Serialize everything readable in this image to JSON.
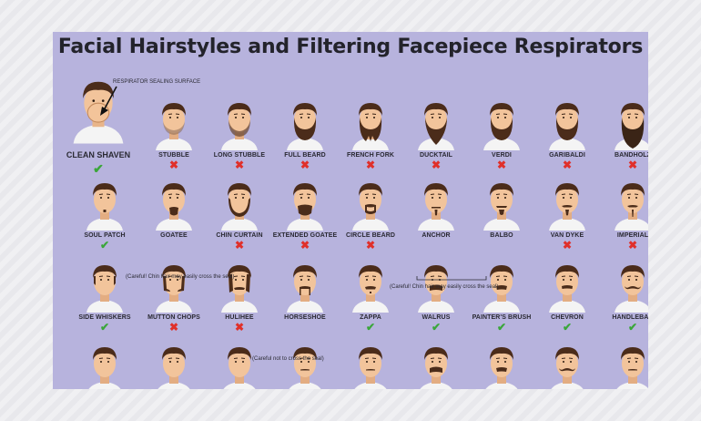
{
  "title": "Facial Hairstyles and Filtering Facepiece Respirators",
  "colors": {
    "poster_bg": "#b7b3dd",
    "skin": "#f2c49b",
    "hair": "#4b2c1a",
    "shirt": "#f4f4f4",
    "respirator": "#f3c49a",
    "allowed": "#3aa63a",
    "not_allowed": "#e0302a"
  },
  "hero": {
    "label": "CLEAN SHAVEN",
    "callout": "RESPIRATOR SEALING SURFACE",
    "verdict": "✔",
    "allowed": true
  },
  "styles": [
    {
      "label": "STUBBLE",
      "allowed": false,
      "verdict": "✖",
      "beard": "stubble"
    },
    {
      "label": "LONG STUBBLE",
      "allowed": false,
      "verdict": "✖",
      "beard": "longstubble"
    },
    {
      "label": "FULL BEARD",
      "allowed": false,
      "verdict": "✖",
      "beard": "full"
    },
    {
      "label": "FRENCH FORK",
      "allowed": false,
      "verdict": "✖",
      "beard": "fork"
    },
    {
      "label": "DUCKTAIL",
      "allowed": false,
      "verdict": "✖",
      "beard": "ducktail"
    },
    {
      "label": "VERDI",
      "allowed": false,
      "verdict": "✖",
      "beard": "full"
    },
    {
      "label": "GARIBALDI",
      "allowed": false,
      "verdict": "✖",
      "beard": "full"
    },
    {
      "label": "BANDHOLZ",
      "allowed": false,
      "verdict": "✖",
      "beard": "long"
    },
    {
      "label": "SOUL PATCH",
      "allowed": true,
      "verdict": "✔",
      "beard": "soulpatch"
    },
    {
      "label": "GOATEE",
      "allowed": false,
      "verdict": "",
      "beard": "goatee"
    },
    {
      "label": "CHIN CURTAIN",
      "allowed": false,
      "verdict": "✖",
      "beard": "chincurtain"
    },
    {
      "label": "EXTENDED GOATEE",
      "allowed": false,
      "verdict": "✖",
      "beard": "extgoatee"
    },
    {
      "label": "CIRCLE BEARD",
      "allowed": false,
      "verdict": "✖",
      "beard": "circle"
    },
    {
      "label": "ANCHOR",
      "allowed": false,
      "verdict": "",
      "beard": "anchor"
    },
    {
      "label": "BALBO",
      "allowed": false,
      "verdict": "",
      "beard": "balbo"
    },
    {
      "label": "VAN DYKE",
      "allowed": false,
      "verdict": "✖",
      "beard": "vandyke"
    },
    {
      "label": "IMPERIAL",
      "allowed": false,
      "verdict": "✖",
      "beard": "imperial"
    },
    {
      "label": "SIDE WHISKERS",
      "allowed": true,
      "verdict": "✔",
      "beard": "sideburns"
    },
    {
      "label": "MUTTON CHOPS",
      "allowed": false,
      "verdict": "✖",
      "beard": "mutton"
    },
    {
      "label": "HULIHEE",
      "allowed": false,
      "verdict": "✖",
      "beard": "hulihee"
    },
    {
      "label": "HORSESHOE",
      "allowed": false,
      "verdict": "",
      "beard": "horseshoe"
    },
    {
      "label": "ZAPPA",
      "allowed": true,
      "verdict": "✔",
      "beard": "zappa"
    },
    {
      "label": "WALRUS",
      "allowed": true,
      "verdict": "✔",
      "beard": "walrus"
    },
    {
      "label": "PAINTER'S BRUSH",
      "allowed": true,
      "verdict": "✔",
      "beard": "painter"
    },
    {
      "label": "CHEVRON",
      "allowed": true,
      "verdict": "✔",
      "beard": "chevron"
    },
    {
      "label": "HANDLEBAR",
      "allowed": true,
      "verdict": "✔",
      "beard": "handlebar"
    },
    {
      "label": "",
      "allowed": true,
      "verdict": "",
      "beard": "clean"
    },
    {
      "label": "",
      "allowed": true,
      "verdict": "",
      "beard": "clean"
    },
    {
      "label": "",
      "allowed": true,
      "verdict": "",
      "beard": "clean"
    },
    {
      "label": "",
      "allowed": true,
      "verdict": "",
      "beard": "pencil"
    },
    {
      "label": "",
      "allowed": true,
      "verdict": "",
      "beard": "pencil"
    },
    {
      "label": "",
      "allowed": true,
      "verdict": "",
      "beard": "walrus"
    },
    {
      "label": "",
      "allowed": true,
      "verdict": "",
      "beard": "painter"
    },
    {
      "label": "",
      "allowed": true,
      "verdict": "",
      "beard": "handlebar"
    },
    {
      "label": "",
      "allowed": true,
      "verdict": "",
      "beard": "pencil"
    }
  ],
  "notes": {
    "goatee": "(Careful! Chin hair may easily cross the seal)",
    "anchor_balbo": "(Careful! Chin hair may easily cross the seal)",
    "horseshoe": "(Careful not to cross the seal)"
  }
}
